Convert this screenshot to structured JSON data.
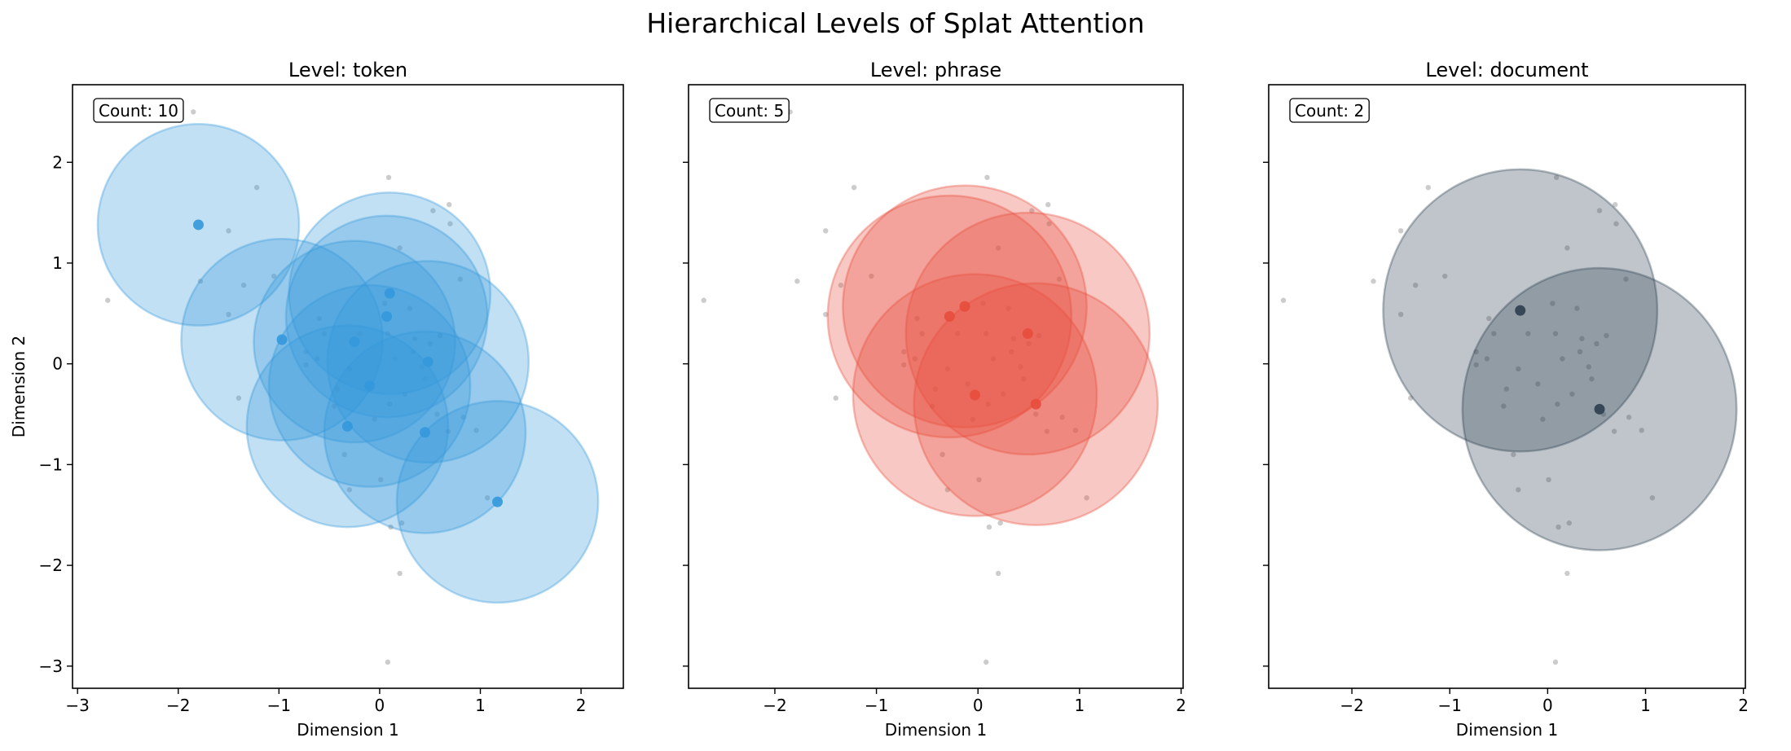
{
  "suptitle": "Hierarchical Levels of Splat Attention",
  "background_points": [
    [
      -1.85,
      2.5
    ],
    [
      -1.22,
      1.75
    ],
    [
      -1.05,
      0.87
    ],
    [
      -1.35,
      0.78
    ],
    [
      -1.78,
      0.82
    ],
    [
      -2.7,
      0.63
    ],
    [
      -1.5,
      1.32
    ],
    [
      0.09,
      1.85
    ],
    [
      0.53,
      1.52
    ],
    [
      0.69,
      1.58
    ],
    [
      0.7,
      1.39
    ],
    [
      0.8,
      0.84
    ],
    [
      0.2,
      1.15
    ],
    [
      0.6,
      0.28
    ],
    [
      0.33,
      0.12
    ],
    [
      -0.73,
      0.12
    ],
    [
      -0.62,
      0.05
    ],
    [
      -0.42,
      -0.25
    ],
    [
      -0.45,
      -0.42
    ],
    [
      -0.1,
      -0.2
    ],
    [
      0.08,
      0.3
    ],
    [
      0.35,
      0.25
    ],
    [
      0.15,
      0.05
    ],
    [
      0.5,
      0.2
    ],
    [
      -0.55,
      0.3
    ],
    [
      -0.3,
      -0.05
    ],
    [
      0.1,
      -0.4
    ],
    [
      0.25,
      -0.3
    ],
    [
      0.57,
      -0.5
    ],
    [
      0.68,
      -0.67
    ],
    [
      0.96,
      -0.66
    ],
    [
      0.83,
      -0.53
    ],
    [
      -0.73,
      -0.01
    ],
    [
      -0.2,
      0.3
    ],
    [
      0.42,
      -0.03
    ],
    [
      -0.35,
      -0.9
    ],
    [
      -1.4,
      -0.34
    ],
    [
      -1.5,
      0.49
    ],
    [
      0.22,
      -1.58
    ],
    [
      0.11,
      -1.62
    ],
    [
      -0.3,
      -1.25
    ],
    [
      0.01,
      -1.15
    ],
    [
      0.2,
      -2.08
    ],
    [
      1.07,
      -1.33
    ],
    [
      0.08,
      -2.96
    ],
    [
      -0.6,
      0.45
    ],
    [
      0.05,
      0.6
    ],
    [
      0.3,
      0.55
    ],
    [
      -0.05,
      -0.55
    ],
    [
      0.45,
      -0.15
    ]
  ],
  "panels": [
    {
      "title": "Level: token",
      "count_label": "Count: 10",
      "xlabel": "Dimension 1",
      "ylabel": "Dimension 2",
      "show_ytick_labels": true,
      "xlim": [
        -3.05,
        2.42
      ],
      "ylim": [
        -3.22,
        2.77
      ],
      "xticks": [
        -3,
        -2,
        -1,
        0,
        1,
        2
      ],
      "yticks": [
        -3,
        -2,
        -1,
        0,
        1,
        2
      ],
      "color": "#3498db",
      "fill_opacity": 0.3,
      "splats": [
        {
          "x": -1.8,
          "y": 1.38,
          "r": 1.0
        },
        {
          "x": -0.97,
          "y": 0.24,
          "r": 1.0
        },
        {
          "x": 0.1,
          "y": 0.7,
          "r": 1.0
        },
        {
          "x": 0.07,
          "y": 0.47,
          "r": 1.0
        },
        {
          "x": -0.25,
          "y": 0.22,
          "r": 1.0
        },
        {
          "x": 0.48,
          "y": 0.02,
          "r": 1.0
        },
        {
          "x": -0.1,
          "y": -0.22,
          "r": 1.0
        },
        {
          "x": -0.32,
          "y": -0.62,
          "r": 1.0
        },
        {
          "x": 0.45,
          "y": -0.68,
          "r": 1.0
        },
        {
          "x": 1.17,
          "y": -1.37,
          "r": 1.0
        }
      ]
    },
    {
      "title": "Level: phrase",
      "count_label": "Count: 5",
      "xlabel": "Dimension 1",
      "ylabel": "",
      "show_ytick_labels": false,
      "xlim": [
        -2.85,
        2.02
      ],
      "ylim": [
        -3.22,
        2.77
      ],
      "xticks": [
        -2,
        -1,
        0,
        1,
        2
      ],
      "yticks": [
        -3,
        -2,
        -1,
        0,
        1,
        2
      ],
      "color": "#e74c3c",
      "fill_opacity": 0.3,
      "splats": [
        {
          "x": -0.13,
          "y": 0.57,
          "r": 1.2
        },
        {
          "x": -0.28,
          "y": 0.47,
          "r": 1.2
        },
        {
          "x": 0.49,
          "y": 0.3,
          "r": 1.2
        },
        {
          "x": -0.03,
          "y": -0.31,
          "r": 1.2
        },
        {
          "x": 0.57,
          "y": -0.4,
          "r": 1.2
        }
      ]
    },
    {
      "title": "Level: document",
      "count_label": "Count: 2",
      "xlabel": "Dimension 1",
      "ylabel": "",
      "show_ytick_labels": false,
      "xlim": [
        -2.85,
        2.02
      ],
      "ylim": [
        -3.22,
        2.77
      ],
      "xticks": [
        -2,
        -1,
        0,
        1,
        2
      ],
      "yticks": [
        -3,
        -2,
        -1,
        0,
        1,
        2
      ],
      "color": "#2c3e50",
      "fill_opacity": 0.3,
      "splats": [
        {
          "x": -0.28,
          "y": 0.53,
          "r": 1.4
        },
        {
          "x": 0.53,
          "y": -0.45,
          "r": 1.4
        }
      ]
    }
  ],
  "chart_data": [
    {
      "type": "scatter",
      "title": "Level: token",
      "xlabel": "Dimension 1",
      "ylabel": "Dimension 2",
      "xlim": [
        -3.05,
        2.42
      ],
      "ylim": [
        -3.22,
        2.77
      ],
      "annotation": "Count: 10",
      "series": [
        {
          "x": [
            -1.8,
            -0.97,
            0.1,
            0.07,
            -0.25,
            0.48,
            -0.1,
            -0.32,
            0.45,
            1.17
          ],
          "y": [
            1.38,
            0.24,
            0.7,
            0.47,
            0.22,
            0.02,
            -0.22,
            -0.62,
            -0.68,
            -1.37
          ]
        }
      ]
    },
    {
      "type": "scatter",
      "title": "Level: phrase",
      "xlabel": "Dimension 1",
      "xlim": [
        -2.85,
        2.02
      ],
      "ylim": [
        -3.22,
        2.77
      ],
      "annotation": "Count: 5",
      "series": [
        {
          "x": [
            -0.13,
            -0.28,
            0.49,
            -0.03,
            0.57
          ],
          "y": [
            0.57,
            0.47,
            0.3,
            -0.31,
            -0.4
          ]
        }
      ]
    },
    {
      "type": "scatter",
      "title": "Level: document",
      "xlabel": "Dimension 1",
      "xlim": [
        -2.85,
        2.02
      ],
      "ylim": [
        -3.22,
        2.77
      ],
      "annotation": "Count: 2",
      "series": [
        {
          "x": [
            -0.28,
            0.53
          ],
          "y": [
            0.53,
            -0.45
          ]
        }
      ]
    }
  ]
}
